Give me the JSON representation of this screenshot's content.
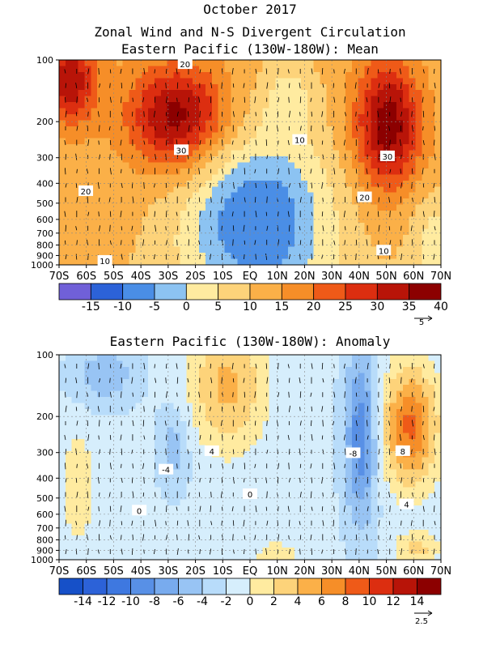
{
  "header": {
    "date": "October 2017",
    "title": "Zonal Wind and N-S Divergent Circulation"
  },
  "chart_data": [
    {
      "type": "heatmap",
      "title": "Eastern Pacific (130W-180W): Mean",
      "x_ticks": [
        "70S",
        "60S",
        "50S",
        "40S",
        "30S",
        "20S",
        "10S",
        "EQ",
        "10N",
        "20N",
        "30N",
        "40N",
        "50N",
        "60N",
        "70N"
      ],
      "y_ticks": [
        "100",
        "200",
        "300",
        "400",
        "500",
        "600",
        "700",
        "800",
        "900",
        "1000"
      ],
      "y_scale": "log",
      "y_range": [
        1000,
        100
      ],
      "grid": true,
      "colorbar": {
        "ticks": [
          "-15",
          "-10",
          "-5",
          "0",
          "5",
          "10",
          "15",
          "20",
          "25",
          "30",
          "35",
          "40"
        ],
        "colors": [
          "#7060d8",
          "#2c62d8",
          "#4a8ee6",
          "#8cc3f2",
          "#ffeba0",
          "#fdd37a",
          "#fbb048",
          "#f68e28",
          "#ef5a18",
          "#dc2e10",
          "#b81408",
          "#8c0000"
        ]
      },
      "contour_labels": [
        "20",
        "30",
        "10",
        "30",
        "20",
        "20",
        "10",
        "10"
      ],
      "vector_scale_label": "5"
    },
    {
      "type": "heatmap",
      "title": "Eastern Pacific (130W-180W): Anomaly",
      "x_ticks": [
        "70S",
        "60S",
        "50S",
        "40S",
        "30S",
        "20S",
        "10S",
        "EQ",
        "10N",
        "20N",
        "30N",
        "40N",
        "50N",
        "60N",
        "70N"
      ],
      "y_ticks": [
        "100",
        "200",
        "300",
        "400",
        "500",
        "600",
        "700",
        "800",
        "900",
        "1000"
      ],
      "y_scale": "log",
      "y_range": [
        1000,
        100
      ],
      "grid": true,
      "colorbar": {
        "ticks": [
          "-14",
          "-12",
          "-10",
          "-8",
          "-6",
          "-4",
          "-2",
          "0",
          "2",
          "4",
          "6",
          "8",
          "10",
          "12",
          "14"
        ],
        "colors": [
          "#1650c8",
          "#2c62d8",
          "#3e78e0",
          "#5890e6",
          "#78abee",
          "#98c4f4",
          "#b8dcfa",
          "#d6eefc",
          "#ffeba0",
          "#fdd37a",
          "#fbb048",
          "#f68e28",
          "#ef5a18",
          "#dc2e10",
          "#b81408",
          "#8c0000"
        ]
      },
      "contour_labels": [
        "4",
        "-4",
        "0",
        "0",
        "-8",
        "8",
        "4"
      ],
      "vector_scale_label": "2.5"
    }
  ]
}
